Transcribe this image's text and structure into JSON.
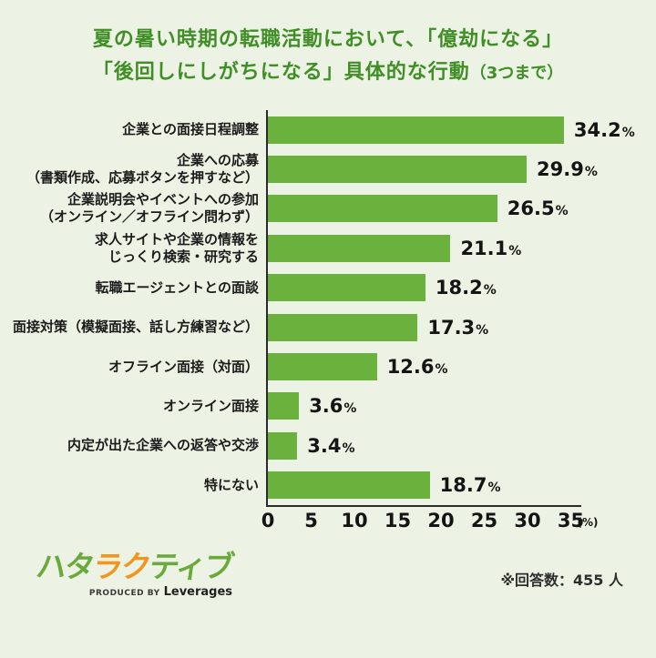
{
  "title": {
    "line1": "夏の暑い時期の転職活動において、「億劫になる」",
    "line2_main": "「後回しにしがちになる」具体的な行動",
    "line2_suffix": "（3つまで）",
    "color": "#3f8f26"
  },
  "chart_data": {
    "type": "bar",
    "orientation": "horizontal",
    "title": "夏の暑い時期の転職活動において、「億劫になる」「後回しにしがちになる」具体的な行動（3つまで）",
    "categories": [
      "企業との面接日程調整",
      "企業への応募\n（書類作成、応募ボタンを押すなど）",
      "企業説明会やイベントへの参加\n（オンライン／オフライン問わず）",
      "求人サイトや企業の情報を\nじっくり検索・研究する",
      "転職エージェントとの面談",
      "面接対策（模擬面接、話し方練習など）",
      "オフライン面接（対面）",
      "オンライン面接",
      "内定が出た企業への返答や交渉",
      "特にない"
    ],
    "values": [
      34.2,
      29.9,
      26.5,
      21.1,
      18.2,
      17.3,
      12.6,
      3.6,
      3.4,
      18.7
    ],
    "unit": "%",
    "x_ticks": [
      0,
      5,
      10,
      15,
      20,
      25,
      30,
      35
    ],
    "xlim": [
      0,
      35
    ],
    "xlabel_suffix": "(%)",
    "bar_color": "#6ab13e",
    "grid": false,
    "legend": false
  },
  "footer": {
    "logo": {
      "chars": [
        {
          "ch": "ハ",
          "color": "#69aa3b"
        },
        {
          "ch": "タ",
          "color": "#69aa3b"
        },
        {
          "ch": "ラ",
          "color": "#f0951d"
        },
        {
          "ch": "ク",
          "color": "#f0951d"
        },
        {
          "ch": "テ",
          "color": "#69aa3b"
        },
        {
          "ch": "ィ",
          "color": "#69aa3b"
        },
        {
          "ch": "ブ",
          "color": "#69aa3b"
        }
      ],
      "produced_by": "PRODUCED BY",
      "company": "Leverages"
    },
    "note": "※回答数：455 人"
  }
}
